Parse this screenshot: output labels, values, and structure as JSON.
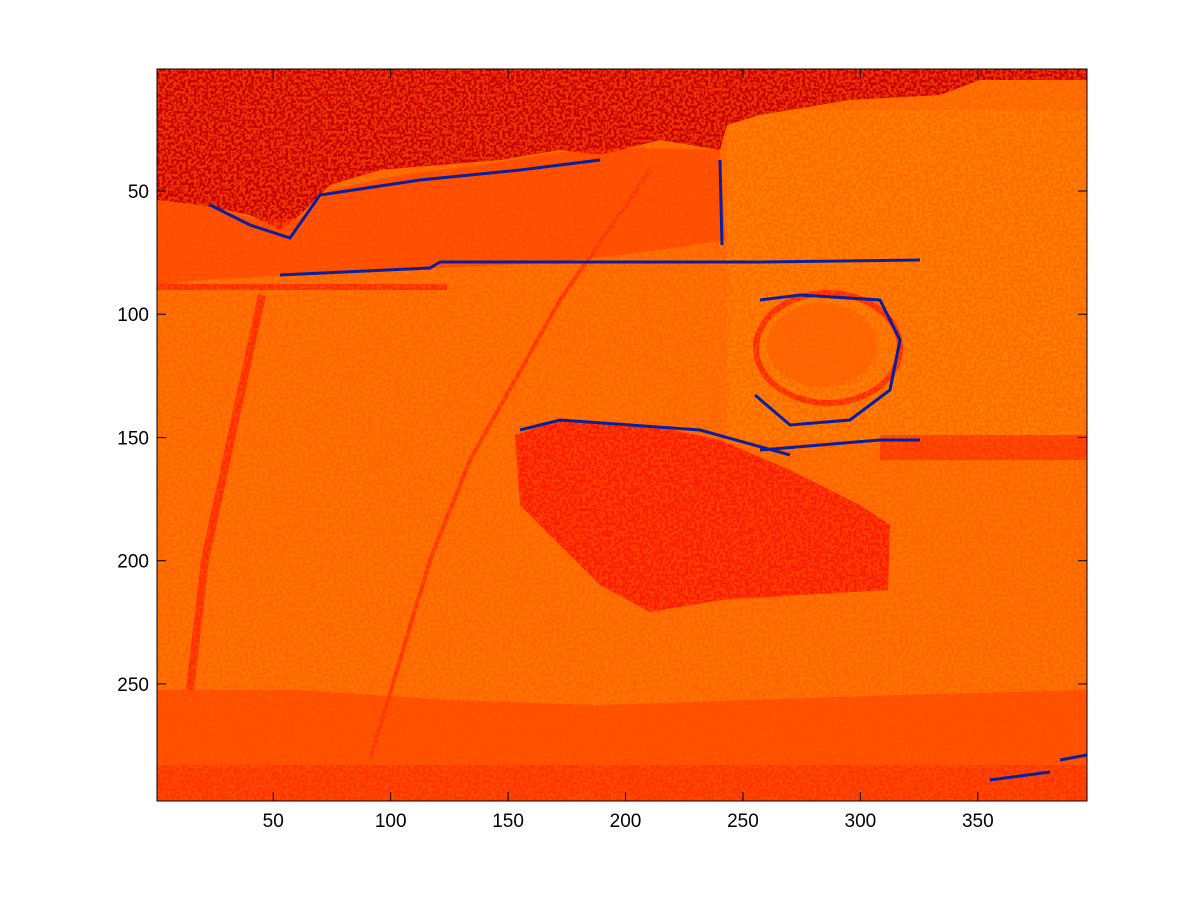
{
  "chart_data": {
    "type": "heatmap",
    "title": "",
    "xlabel": "",
    "ylabel": "",
    "image_width": 396,
    "image_height": 297,
    "xlim": [
      0.5,
      396.5
    ],
    "ylim": [
      0.5,
      297.5
    ],
    "y_direction": "reverse",
    "x_ticks": [
      50,
      100,
      150,
      200,
      250,
      300,
      350
    ],
    "y_ticks": [
      50,
      100,
      150,
      200,
      250
    ],
    "grid": false,
    "legend": "none",
    "colormap": {
      "dark_red": "#cc0000",
      "red": "#ff1a00",
      "orange_red": "#ff4d00",
      "orange": "#ff7300",
      "light_orange": "#ff8000",
      "blue": "#0a1f9e"
    },
    "regions": [
      {
        "name": "top-left dark region",
        "color": "dark_red"
      },
      {
        "name": "central red blob",
        "color": "red"
      },
      {
        "name": "bottom red band",
        "color": "orange_red"
      },
      {
        "name": "background",
        "color": "orange"
      },
      {
        "name": "edges",
        "color": "blue"
      }
    ]
  }
}
